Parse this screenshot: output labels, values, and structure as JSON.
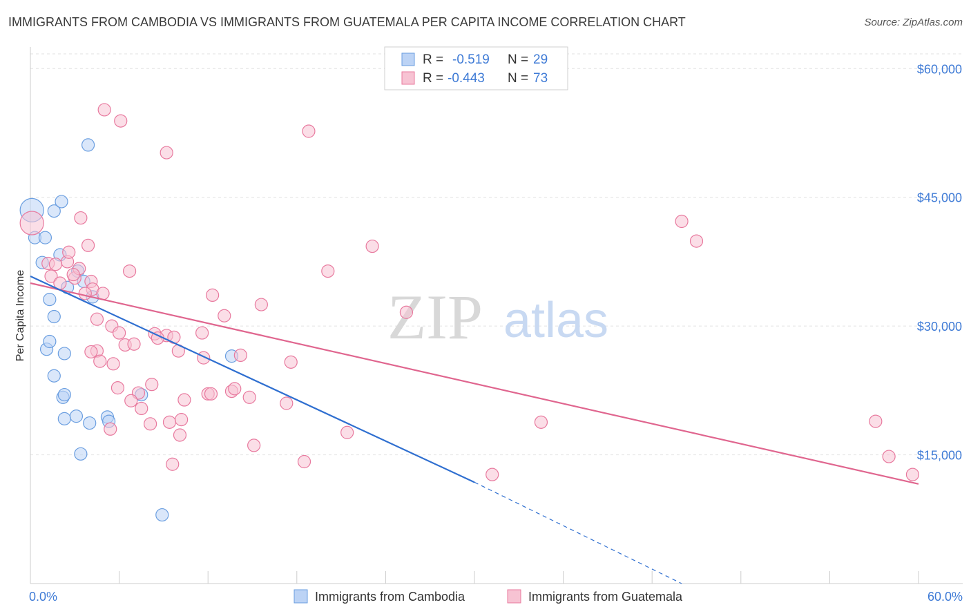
{
  "title": "IMMIGRANTS FROM CAMBODIA VS IMMIGRANTS FROM GUATEMALA PER CAPITA INCOME CORRELATION CHART",
  "source": "Source: ZipAtlas.com",
  "watermark": {
    "zip": "ZIP",
    "atlas": "atlas"
  },
  "legend_top": [
    {
      "r_label": "R =",
      "r_value": "-0.519",
      "n_label": "N =",
      "n_value": "29"
    },
    {
      "r_label": "R =",
      "r_value": "-0.443",
      "n_label": "N =",
      "n_value": "73"
    }
  ],
  "colors": {
    "cambodia": "#6a9ee0",
    "cambodia_fill": "#bcd3f5",
    "guatemala": "#e8799e",
    "guatemala_fill": "#f7c3d3",
    "line_blue": "#2f6fd0",
    "line_pink": "#e0668f",
    "tick_text": "#3f7bd6"
  },
  "chart_data": {
    "type": "scatter",
    "title": "IMMIGRANTS FROM CAMBODIA VS IMMIGRANTS FROM GUATEMALA PER CAPITA INCOME CORRELATION CHART",
    "ylabel": "Per Capita Income",
    "xlim": [
      0,
      60
    ],
    "ylim": [
      0,
      63000
    ],
    "x_tick_labels": [
      "0.0%",
      "60.0%"
    ],
    "y_ticks": [
      15000,
      30000,
      45000,
      60000
    ],
    "y_tick_labels": [
      "$15,000",
      "$30,000",
      "$45,000",
      "$60,000"
    ],
    "series": [
      {
        "name": "Immigrants from Cambodia",
        "r": -0.519,
        "n": 29,
        "points": [
          [
            0.1,
            43500
          ],
          [
            0.3,
            40300
          ],
          [
            0.8,
            37400
          ],
          [
            1.0,
            40300
          ],
          [
            1.6,
            43400
          ],
          [
            2.1,
            44500
          ],
          [
            1.3,
            33100
          ],
          [
            1.6,
            31100
          ],
          [
            2.5,
            34500
          ],
          [
            3.2,
            36400
          ],
          [
            4.2,
            33400
          ],
          [
            1.1,
            27300
          ],
          [
            3.9,
            51100
          ],
          [
            3.6,
            35200
          ],
          [
            2.0,
            38300
          ],
          [
            1.3,
            28200
          ],
          [
            1.6,
            24200
          ],
          [
            2.3,
            26800
          ],
          [
            4.0,
            18700
          ],
          [
            5.2,
            19400
          ],
          [
            2.2,
            21700
          ],
          [
            2.3,
            19200
          ],
          [
            3.1,
            19500
          ],
          [
            2.3,
            22000
          ],
          [
            3.4,
            15100
          ],
          [
            5.3,
            18900
          ],
          [
            7.5,
            22000
          ],
          [
            8.9,
            8000
          ],
          [
            13.6,
            26500
          ]
        ],
        "trend": [
          [
            0,
            35800
          ],
          [
            30,
            11800
          ]
        ],
        "trend_dashed": [
          [
            30,
            11800
          ],
          [
            44,
            0
          ]
        ]
      },
      {
        "name": "Immigrants from Guatemala",
        "r": -0.443,
        "n": 73,
        "points": [
          [
            0.1,
            42000
          ],
          [
            1.2,
            37300
          ],
          [
            1.4,
            35800
          ],
          [
            2.0,
            35000
          ],
          [
            2.5,
            37500
          ],
          [
            3.0,
            35600
          ],
          [
            3.4,
            42600
          ],
          [
            3.3,
            36700
          ],
          [
            4.1,
            35200
          ],
          [
            4.2,
            34300
          ],
          [
            3.9,
            39400
          ],
          [
            4.5,
            30800
          ],
          [
            2.6,
            38600
          ],
          [
            3.7,
            33800
          ],
          [
            5.0,
            55200
          ],
          [
            5.5,
            30000
          ],
          [
            6.1,
            53900
          ],
          [
            4.9,
            33800
          ],
          [
            4.5,
            27100
          ],
          [
            5.6,
            25600
          ],
          [
            6.0,
            29200
          ],
          [
            5.4,
            18000
          ],
          [
            6.4,
            27800
          ],
          [
            6.7,
            36400
          ],
          [
            7.0,
            27900
          ],
          [
            5.9,
            22800
          ],
          [
            7.3,
            22200
          ],
          [
            6.8,
            21300
          ],
          [
            7.5,
            20400
          ],
          [
            8.1,
            18600
          ],
          [
            8.2,
            23200
          ],
          [
            8.4,
            29100
          ],
          [
            9.2,
            28900
          ],
          [
            9.2,
            50200
          ],
          [
            9.4,
            18800
          ],
          [
            9.7,
            28700
          ],
          [
            10.0,
            27100
          ],
          [
            10.4,
            21400
          ],
          [
            10.2,
            19100
          ],
          [
            10.1,
            17300
          ],
          [
            11.6,
            29200
          ],
          [
            11.7,
            26300
          ],
          [
            12.0,
            22100
          ],
          [
            12.2,
            22100
          ],
          [
            12.3,
            33600
          ],
          [
            13.1,
            31200
          ],
          [
            13.6,
            22400
          ],
          [
            13.8,
            22700
          ],
          [
            14.2,
            26600
          ],
          [
            14.8,
            21700
          ],
          [
            15.1,
            16100
          ],
          [
            15.6,
            32500
          ],
          [
            17.6,
            25800
          ],
          [
            17.3,
            21000
          ],
          [
            18.5,
            14200
          ],
          [
            18.8,
            52700
          ],
          [
            20.1,
            36400
          ],
          [
            21.4,
            17600
          ],
          [
            23.1,
            39300
          ],
          [
            25.4,
            31600
          ],
          [
            31.2,
            12700
          ],
          [
            34.5,
            18800
          ],
          [
            44.0,
            42200
          ],
          [
            45.0,
            39900
          ],
          [
            57.1,
            18900
          ],
          [
            58.0,
            14800
          ],
          [
            59.6,
            12700
          ],
          [
            9.6,
            13900
          ],
          [
            8.6,
            28600
          ],
          [
            4.1,
            27000
          ],
          [
            4.7,
            25900
          ],
          [
            1.7,
            37200
          ],
          [
            2.9,
            36000
          ]
        ],
        "trend": [
          [
            0,
            35000
          ],
          [
            60,
            11600
          ]
        ]
      }
    ],
    "legend": [
      "Immigrants from Cambodia",
      "Immigrants from Guatemala"
    ]
  }
}
